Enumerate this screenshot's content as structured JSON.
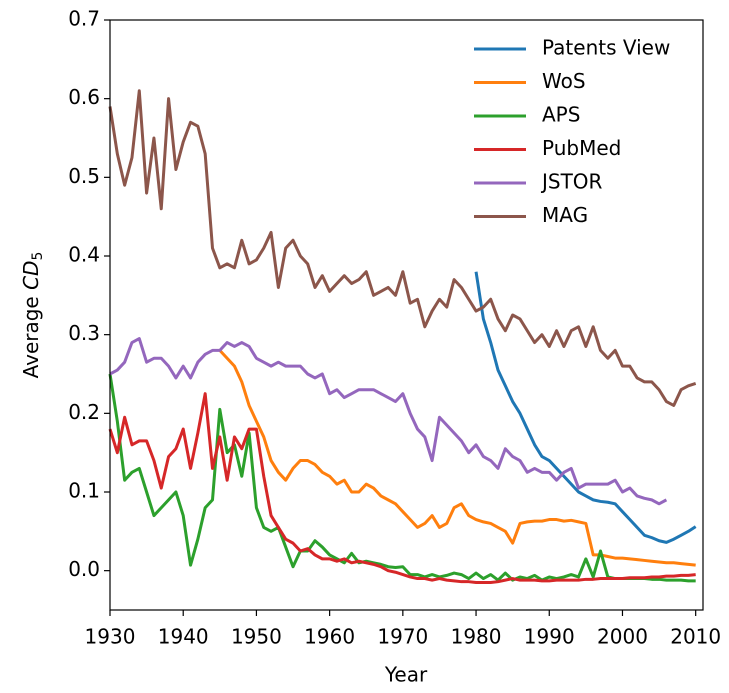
{
  "chart_data": {
    "type": "line",
    "x_label": "Year",
    "y_label": {
      "text": "Average ",
      "symbol": "CD",
      "subscript": "5"
    },
    "x": [
      1930,
      1931,
      1932,
      1933,
      1934,
      1935,
      1936,
      1937,
      1938,
      1939,
      1940,
      1941,
      1942,
      1943,
      1944,
      1945,
      1946,
      1947,
      1948,
      1949,
      1950,
      1951,
      1952,
      1953,
      1954,
      1955,
      1956,
      1957,
      1958,
      1959,
      1960,
      1961,
      1962,
      1963,
      1964,
      1965,
      1966,
      1967,
      1968,
      1969,
      1970,
      1971,
      1972,
      1973,
      1974,
      1975,
      1976,
      1977,
      1978,
      1979,
      1980,
      1981,
      1982,
      1983,
      1984,
      1985,
      1986,
      1987,
      1988,
      1989,
      1990,
      1991,
      1992,
      1993,
      1994,
      1995,
      1996,
      1997,
      1998,
      1999,
      2000,
      2001,
      2002,
      2003,
      2004,
      2005,
      2006,
      2007,
      2008,
      2009,
      2010
    ],
    "xlim": [
      1930,
      2011
    ],
    "xticks": [
      1930,
      1940,
      1950,
      1960,
      1970,
      1980,
      1990,
      2000,
      2010
    ],
    "ylim": [
      -0.05,
      0.7
    ],
    "yticks": [
      {
        "value": 0,
        "label": "0.0"
      },
      0.1,
      0.2,
      0.3,
      0.4,
      0.5,
      0.6,
      0.7
    ],
    "legend": "upper right",
    "series": [
      {
        "name": "Patents View",
        "color": "#1f77b4",
        "values": [
          null,
          null,
          null,
          null,
          null,
          null,
          null,
          null,
          null,
          null,
          null,
          null,
          null,
          null,
          null,
          null,
          null,
          null,
          null,
          null,
          null,
          null,
          null,
          null,
          null,
          null,
          null,
          null,
          null,
          null,
          null,
          null,
          null,
          null,
          null,
          null,
          null,
          null,
          null,
          null,
          null,
          null,
          null,
          null,
          null,
          null,
          null,
          null,
          null,
          null,
          0.38,
          0.32,
          0.29,
          0.255,
          0.235,
          0.215,
          0.2,
          0.18,
          0.16,
          0.145,
          0.14,
          0.13,
          0.12,
          0.11,
          0.1,
          0.095,
          0.09,
          0.088,
          0.087,
          0.085,
          0.075,
          0.065,
          0.055,
          0.045,
          0.042,
          0.038,
          0.036,
          0.04,
          0.045,
          0.05,
          0.056
        ]
      },
      {
        "name": "WoS",
        "color": "#ff7f0e",
        "values": [
          null,
          null,
          null,
          null,
          null,
          null,
          null,
          null,
          null,
          null,
          null,
          null,
          null,
          null,
          null,
          0.28,
          0.27,
          0.26,
          0.24,
          0.21,
          0.19,
          0.17,
          0.14,
          0.125,
          0.115,
          0.13,
          0.14,
          0.14,
          0.135,
          0.125,
          0.12,
          0.11,
          0.115,
          0.1,
          0.1,
          0.11,
          0.105,
          0.095,
          0.09,
          0.085,
          0.075,
          0.065,
          0.055,
          0.06,
          0.07,
          0.055,
          0.06,
          0.08,
          0.085,
          0.07,
          0.065,
          0.062,
          0.06,
          0.055,
          0.05,
          0.035,
          0.06,
          0.062,
          0.063,
          0.063,
          0.065,
          0.065,
          0.063,
          0.064,
          0.062,
          0.06,
          0.02,
          0.02,
          0.018,
          0.016,
          0.016,
          0.015,
          0.014,
          0.013,
          0.012,
          0.011,
          0.01,
          0.01,
          0.009,
          0.008,
          0.007
        ]
      },
      {
        "name": "APS",
        "color": "#2ca02c",
        "values": [
          0.25,
          0.19,
          0.115,
          0.125,
          0.13,
          0.1,
          0.07,
          0.08,
          0.09,
          0.1,
          0.07,
          0.007,
          0.04,
          0.08,
          0.09,
          0.205,
          0.15,
          0.16,
          0.12,
          0.175,
          0.08,
          0.055,
          0.05,
          0.055,
          0.03,
          0.005,
          0.025,
          0.025,
          0.038,
          0.03,
          0.02,
          0.015,
          0.01,
          0.022,
          0.01,
          0.012,
          0.01,
          0.008,
          0.005,
          0.004,
          0.005,
          -0.005,
          -0.005,
          -0.008,
          -0.005,
          -0.008,
          -0.006,
          -0.003,
          -0.005,
          -0.01,
          -0.003,
          -0.01,
          -0.005,
          -0.012,
          -0.003,
          -0.012,
          -0.008,
          -0.01,
          -0.006,
          -0.012,
          -0.008,
          -0.01,
          -0.008,
          -0.005,
          -0.008,
          0.015,
          -0.008,
          0.025,
          -0.008,
          -0.01,
          -0.01,
          -0.01,
          -0.01,
          -0.01,
          -0.011,
          -0.011,
          -0.012,
          -0.012,
          -0.012,
          -0.013,
          -0.013
        ]
      },
      {
        "name": "PubMed",
        "color": "#d62728",
        "values": [
          0.18,
          0.15,
          0.195,
          0.16,
          0.165,
          0.165,
          0.14,
          0.105,
          0.145,
          0.155,
          0.18,
          0.13,
          0.175,
          0.225,
          0.13,
          0.17,
          0.115,
          0.17,
          0.155,
          0.18,
          0.18,
          0.12,
          0.07,
          0.055,
          0.04,
          0.035,
          0.025,
          0.028,
          0.02,
          0.015,
          0.015,
          0.012,
          0.015,
          0.01,
          0.012,
          0.01,
          0.008,
          0.005,
          0.0,
          -0.002,
          -0.005,
          -0.008,
          -0.01,
          -0.01,
          -0.012,
          -0.01,
          -0.012,
          -0.013,
          -0.014,
          -0.014,
          -0.015,
          -0.015,
          -0.015,
          -0.014,
          -0.012,
          -0.01,
          -0.012,
          -0.012,
          -0.012,
          -0.013,
          -0.013,
          -0.012,
          -0.012,
          -0.012,
          -0.012,
          -0.011,
          -0.011,
          -0.01,
          -0.01,
          -0.01,
          -0.01,
          -0.009,
          -0.009,
          -0.009,
          -0.008,
          -0.008,
          -0.007,
          -0.007,
          -0.006,
          -0.006,
          -0.005
        ]
      },
      {
        "name": "JSTOR",
        "color": "#9467bd",
        "values": [
          0.25,
          0.255,
          0.265,
          0.29,
          0.295,
          0.265,
          0.27,
          0.27,
          0.26,
          0.245,
          0.26,
          0.245,
          0.265,
          0.275,
          0.28,
          0.28,
          0.29,
          0.285,
          0.29,
          0.285,
          0.27,
          0.265,
          0.26,
          0.265,
          0.26,
          0.26,
          0.26,
          0.25,
          0.245,
          0.25,
          0.225,
          0.23,
          0.22,
          0.225,
          0.23,
          0.23,
          0.23,
          0.225,
          0.22,
          0.215,
          0.225,
          0.2,
          0.18,
          0.17,
          0.14,
          0.195,
          0.185,
          0.175,
          0.165,
          0.15,
          0.16,
          0.145,
          0.14,
          0.13,
          0.155,
          0.145,
          0.14,
          0.125,
          0.13,
          0.125,
          0.125,
          0.115,
          0.125,
          0.13,
          0.105,
          0.11,
          0.11,
          0.11,
          0.11,
          0.115,
          0.1,
          0.105,
          0.095,
          0.092,
          0.09,
          0.085,
          0.09,
          null,
          null,
          null,
          null
        ]
      },
      {
        "name": "MAG",
        "color": "#8c564b",
        "values": [
          0.59,
          0.53,
          0.49,
          0.525,
          0.61,
          0.48,
          0.55,
          0.46,
          0.6,
          0.51,
          0.545,
          0.57,
          0.565,
          0.53,
          0.41,
          0.385,
          0.39,
          0.385,
          0.42,
          0.39,
          0.395,
          0.41,
          0.43,
          0.36,
          0.41,
          0.42,
          0.4,
          0.39,
          0.36,
          0.375,
          0.355,
          0.365,
          0.375,
          0.365,
          0.37,
          0.38,
          0.35,
          0.355,
          0.36,
          0.35,
          0.38,
          0.34,
          0.345,
          0.31,
          0.33,
          0.345,
          0.335,
          0.37,
          0.36,
          0.345,
          0.33,
          0.335,
          0.345,
          0.32,
          0.305,
          0.325,
          0.32,
          0.305,
          0.29,
          0.3,
          0.285,
          0.305,
          0.285,
          0.305,
          0.31,
          0.285,
          0.31,
          0.28,
          0.27,
          0.28,
          0.26,
          0.26,
          0.245,
          0.24,
          0.24,
          0.23,
          0.215,
          0.21,
          0.23,
          0.235,
          0.238
        ]
      }
    ]
  }
}
